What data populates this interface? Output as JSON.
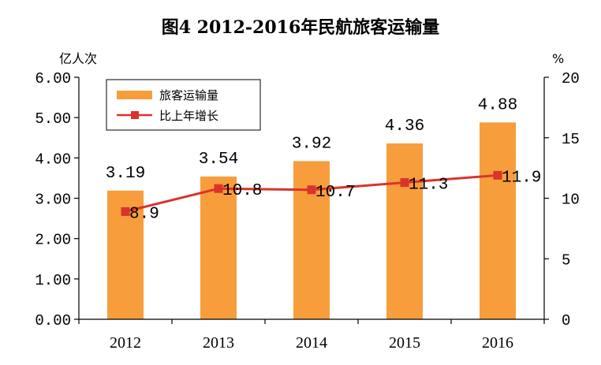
{
  "chart_data": {
    "type": "bar",
    "title": "图4 2012-2016年民航旅客运输量",
    "categories": [
      "2012",
      "2013",
      "2014",
      "2015",
      "2016"
    ],
    "series": [
      {
        "name": "旅客运输量",
        "type": "bar",
        "axis": "left",
        "values": [
          3.19,
          3.54,
          3.92,
          4.36,
          4.88
        ],
        "labels": [
          "3.19",
          "3.54",
          "3.92",
          "4.36",
          "4.88"
        ],
        "color": "#f79d3c"
      },
      {
        "name": "比上年增长",
        "type": "line",
        "axis": "right",
        "values": [
          8.9,
          10.8,
          10.7,
          11.3,
          11.9
        ],
        "labels": [
          "8.9",
          "10.8",
          "10.7",
          "11.3",
          "11.9"
        ],
        "color": "#d9342b"
      }
    ],
    "y_left": {
      "unit": "亿人次",
      "min": 0,
      "max": 6,
      "ticks": [
        0,
        1,
        2,
        3,
        4,
        5,
        6
      ],
      "tick_labels": [
        "0.00",
        "1.00",
        "2.00",
        "3.00",
        "4.00",
        "5.00",
        "6.00"
      ]
    },
    "y_right": {
      "unit": "%",
      "min": 0,
      "max": 20,
      "ticks": [
        0,
        5,
        10,
        15,
        20
      ],
      "tick_labels": [
        "0",
        "5",
        "10",
        "15",
        "20"
      ]
    },
    "grid": false,
    "legend": "top-left"
  }
}
